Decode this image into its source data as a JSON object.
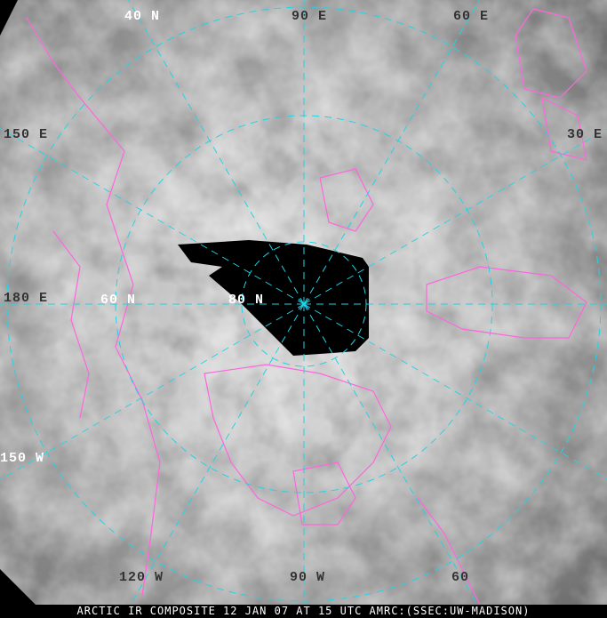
{
  "caption": "ARCTIC IR COMPOSITE 12 JAN 07 AT 15 UTC AMRC:(SSEC:UW-MADISON)",
  "labels": {
    "lat_40n": "40 N",
    "lon_90e": "90 E",
    "lon_60e": "60 E",
    "lon_150e": "150 E",
    "lon_30e": "30 E",
    "lon_180e": "180 E",
    "lat_60n": "60 N",
    "lat_80n": "80 N",
    "lon_150w": "150 W",
    "lon_120w": "120 W",
    "lon_90w": "90 W",
    "lon_60w": "60"
  },
  "colors": {
    "graticule": "#22d3e6",
    "coastline": "#ff66dd",
    "no_data": "#000000"
  }
}
